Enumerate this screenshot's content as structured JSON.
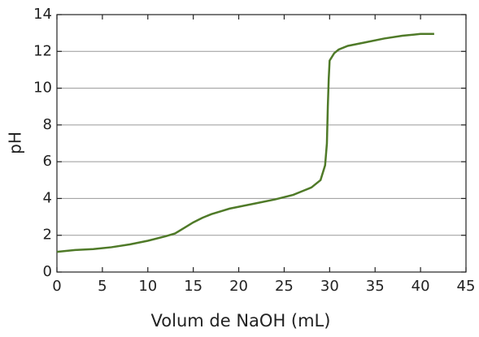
{
  "chart_data": {
    "type": "line",
    "xlabel": "Volum de NaOH (mL)",
    "ylabel": "pH",
    "x": [
      0,
      2,
      4,
      6,
      8,
      10,
      12,
      13,
      14,
      15,
      16,
      17,
      18,
      19,
      20,
      22,
      24,
      26,
      27,
      28,
      29,
      29.5,
      29.7,
      29.8,
      29.9,
      30,
      30.5,
      31,
      32,
      34,
      36,
      38,
      40,
      41.5
    ],
    "series": [
      {
        "color": "#4f7a28",
        "values": [
          1.1,
          1.2,
          1.25,
          1.35,
          1.5,
          1.7,
          1.95,
          2.1,
          2.4,
          2.7,
          2.95,
          3.15,
          3.3,
          3.45,
          3.55,
          3.75,
          3.95,
          4.2,
          4.4,
          4.6,
          5.0,
          5.8,
          7,
          9,
          10.5,
          11.5,
          11.9,
          12.1,
          12.3,
          12.5,
          12.7,
          12.85,
          12.95,
          12.95
        ]
      }
    ],
    "xlim": [
      0,
      45
    ],
    "xticks": [
      0,
      5,
      10,
      15,
      20,
      25,
      30,
      35,
      40,
      45
    ],
    "ylim": [
      0,
      14
    ],
    "yticks": [
      0,
      2,
      4,
      6,
      8,
      10,
      12,
      14
    ],
    "grid": true
  }
}
